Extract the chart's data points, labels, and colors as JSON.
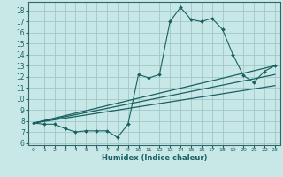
{
  "xlabel": "Humidex (Indice chaleur)",
  "xlim": [
    -0.5,
    23.5
  ],
  "ylim": [
    5.8,
    18.8
  ],
  "yticks": [
    6,
    7,
    8,
    9,
    10,
    11,
    12,
    13,
    14,
    15,
    16,
    17,
    18
  ],
  "xticks": [
    0,
    1,
    2,
    3,
    4,
    5,
    6,
    7,
    8,
    9,
    10,
    11,
    12,
    13,
    14,
    15,
    16,
    17,
    18,
    19,
    20,
    21,
    22,
    23
  ],
  "bg_color": "#c8e8e8",
  "grid_color": "#a0c8c8",
  "line_color": "#1a6060",
  "spine_color": "#336666",
  "main_x": [
    0,
    1,
    2,
    3,
    4,
    5,
    6,
    7,
    8,
    9,
    10,
    11,
    12,
    13,
    14,
    15,
    16,
    17,
    18,
    19,
    20,
    21,
    22,
    23
  ],
  "main_y": [
    7.8,
    7.7,
    7.7,
    7.3,
    7.0,
    7.1,
    7.1,
    7.1,
    6.5,
    7.7,
    12.2,
    11.9,
    12.2,
    17.0,
    18.3,
    17.2,
    17.0,
    17.3,
    16.3,
    14.0,
    12.1,
    11.5,
    12.5,
    13.0
  ],
  "line1_x": [
    0,
    23
  ],
  "line1_y": [
    7.8,
    13.0
  ],
  "line2_x": [
    0,
    23
  ],
  "line2_y": [
    7.8,
    12.2
  ],
  "line3_x": [
    0,
    23
  ],
  "line3_y": [
    7.8,
    11.2
  ]
}
